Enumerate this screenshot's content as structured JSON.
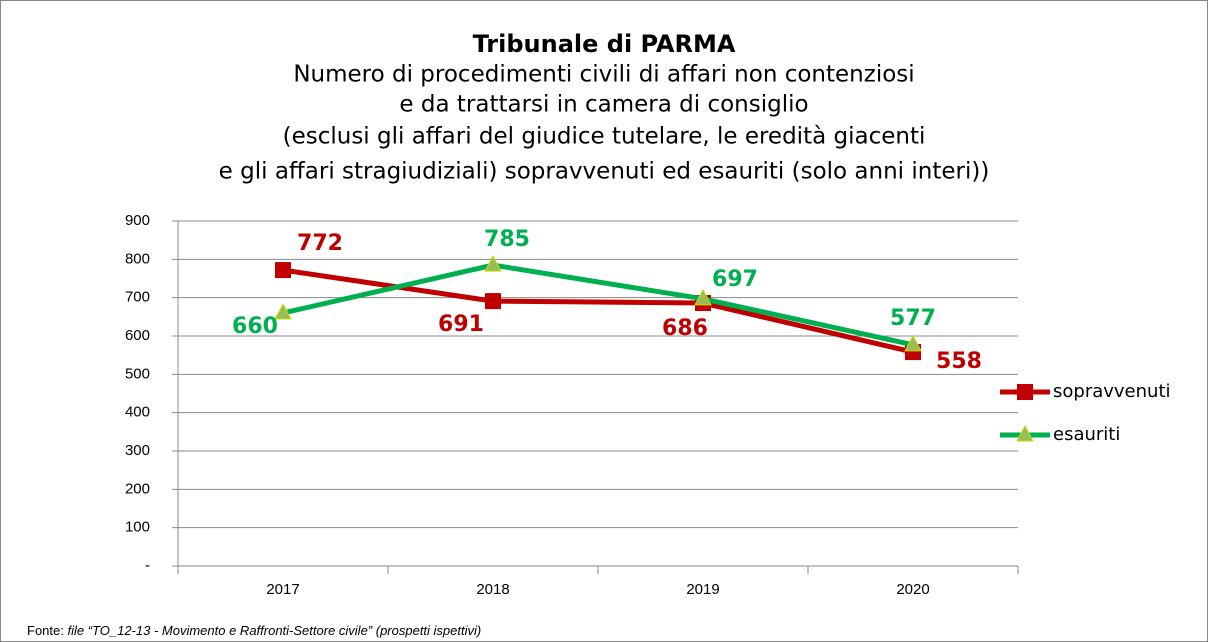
{
  "chart_data": {
    "type": "line",
    "title": "Tribunale di PARMA",
    "subtitle": [
      "Numero di procedimenti civili di affari non contenziosi",
      "e da trattarsi in camera di consiglio",
      "(esclusi gli affari del giudice tutelare, le eredità giacenti",
      "e gli affari stragiudiziali) sopravvenuti ed esauriti (solo anni interi))"
    ],
    "categories": [
      "2017",
      "2018",
      "2019",
      "2020"
    ],
    "series": [
      {
        "name": "sopravvenuti",
        "color": "#c00000",
        "values": [
          772,
          691,
          686,
          558
        ]
      },
      {
        "name": "esauriti",
        "color": "#00b050",
        "values": [
          660,
          785,
          697,
          577
        ]
      }
    ],
    "ylim": [
      0,
      900
    ],
    "yticks": [
      {
        "value": 0,
        "label": "-"
      },
      100,
      200,
      300,
      400,
      500,
      600,
      700,
      800,
      900
    ],
    "grid": true,
    "legend": "right",
    "source_label": "Fonte:",
    "source": "file “TO_12-13 - Movimento e Raffronti-Settore civile” (prospetti ispettivi)"
  }
}
